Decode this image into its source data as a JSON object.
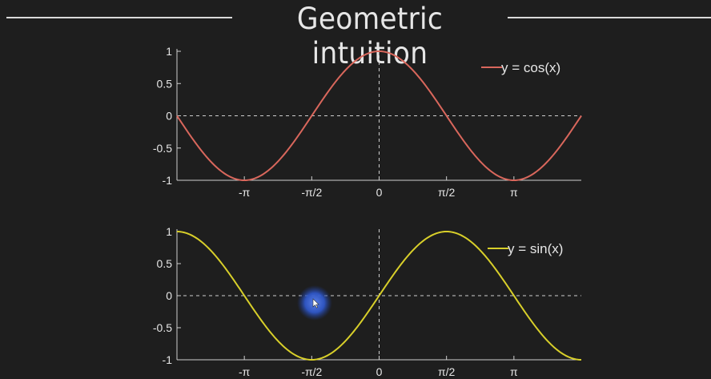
{
  "slide": {
    "title": "Geometric intuition"
  },
  "colors": {
    "background": "#1e1e1e",
    "axis": "#cfcfcf",
    "cos_line": "#d9675c",
    "sin_line": "#d8cf2a",
    "cursor_highlight": "#2f57c8"
  },
  "chart_data": [
    {
      "type": "line",
      "title": "",
      "xlabel": "",
      "ylabel": "",
      "xlim": [
        -4.712,
        4.712
      ],
      "ylim": [
        -1,
        1
      ],
      "x_ticks": [
        -3.1416,
        -1.5708,
        0,
        1.5708,
        3.1416
      ],
      "x_tick_labels": [
        "-π",
        "-π/2",
        "0",
        "π/2",
        "π"
      ],
      "y_ticks": [
        1,
        0.5,
        0,
        -0.5,
        -1
      ],
      "y_tick_labels": [
        "1",
        "0.5",
        "0",
        "-0.5",
        "-1"
      ],
      "reference_lines": {
        "horizontal_y": 0,
        "vertical_x": 0,
        "style": "dashed"
      },
      "legend_placement": "top-right",
      "series": [
        {
          "name": "y = cos(x)",
          "function": "cos",
          "color": "#d9675c",
          "x": [
            -4.712,
            -3.927,
            -3.1416,
            -2.356,
            -1.5708,
            -0.785,
            0,
            0.785,
            1.5708,
            2.356,
            3.1416,
            3.927,
            4.712
          ],
          "values": [
            0,
            -0.707,
            -1,
            -0.707,
            0,
            0.707,
            1,
            0.707,
            0,
            -0.707,
            -1,
            -0.707,
            0
          ]
        }
      ]
    },
    {
      "type": "line",
      "title": "",
      "xlabel": "",
      "ylabel": "",
      "xlim": [
        -4.712,
        4.712
      ],
      "ylim": [
        -1,
        1
      ],
      "x_ticks": [
        -3.1416,
        -1.5708,
        0,
        1.5708,
        3.1416
      ],
      "x_tick_labels": [
        "-π",
        "-π/2",
        "0",
        "π/2",
        "π"
      ],
      "y_ticks": [
        1,
        0.5,
        0,
        -0.5,
        -1
      ],
      "y_tick_labels": [
        "1",
        "0.5",
        "0",
        "-0.5",
        "-1"
      ],
      "reference_lines": {
        "horizontal_y": 0,
        "vertical_x": 0,
        "style": "dashed"
      },
      "legend_placement": "top-right",
      "series": [
        {
          "name": "y = sin(x)",
          "function": "sin",
          "color": "#d8cf2a",
          "x": [
            -4.712,
            -3.927,
            -3.1416,
            -2.356,
            -1.5708,
            -0.785,
            0,
            0.785,
            1.5708,
            2.356,
            3.1416,
            3.927,
            4.712
          ],
          "values": [
            1,
            0.707,
            0,
            -0.707,
            -1,
            -0.707,
            0,
            0.707,
            1,
            0.707,
            0,
            -0.707,
            -1
          ]
        }
      ]
    }
  ],
  "pointer": {
    "icon": "mouse-pointer-icon"
  }
}
